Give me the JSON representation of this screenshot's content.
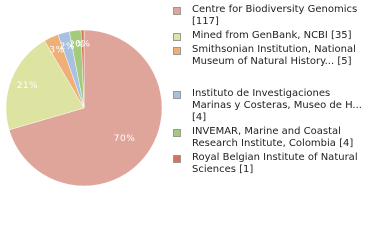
{
  "chart_data": {
    "type": "pie",
    "categories": [
      "Centre for Biodiversity Genomics [117]",
      "Mined from GenBank, NCBI [35]",
      "Smithsonian Institution, National Museum of Natural History... [5]",
      "Instituto de Investigaciones Marinas y Costeras, Museo de H... [4]",
      "INVEMAR, Marine and Coastal Research Institute, Colombia [4]",
      "Royal Belgian Institute of Natural Sciences [1]"
    ],
    "values": [
      117,
      35,
      5,
      4,
      4,
      1
    ],
    "value_labels": [
      "70%",
      "21%",
      "3%",
      "2%",
      "2%",
      "0%"
    ],
    "colors": [
      "#dfa59b",
      "#dde3a1",
      "#efb077",
      "#a9c1e1",
      "#a4cb7b",
      "#da7259"
    ]
  }
}
